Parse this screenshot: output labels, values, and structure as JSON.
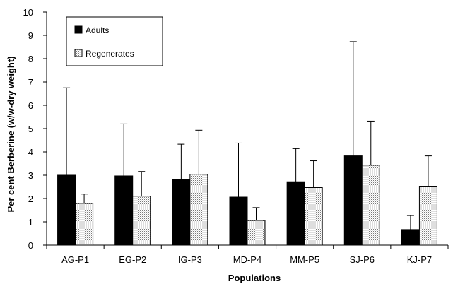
{
  "chart_data": {
    "type": "bar",
    "xlabel": "Populations",
    "ylabel": "Per cent Berberine (w/w-dry weight)",
    "ylim": [
      0,
      10
    ],
    "yticks": [
      0,
      1,
      2,
      3,
      4,
      5,
      6,
      7,
      8,
      9,
      10
    ],
    "grid": false,
    "legend_position": "top-left",
    "categories": [
      "AG-P1",
      "EG-P2",
      "IG-P3",
      "MD-P4",
      "MM-P5",
      "SJ-P6",
      "KJ-P7"
    ],
    "series": [
      {
        "name": "Adults",
        "values": [
          3.0,
          2.97,
          2.82,
          2.06,
          2.72,
          3.83,
          0.67
        ],
        "error_upper": [
          6.75,
          5.2,
          4.33,
          4.38,
          4.14,
          8.73,
          1.27
        ],
        "color": "#000000",
        "pattern": "solid"
      },
      {
        "name": "Regenerates",
        "values": [
          1.79,
          2.1,
          3.04,
          1.06,
          2.47,
          3.43,
          2.53
        ],
        "error_upper": [
          2.19,
          3.16,
          4.93,
          1.61,
          3.62,
          5.32,
          3.83
        ],
        "color": "#d8d8d8",
        "pattern": "dotted"
      }
    ]
  }
}
